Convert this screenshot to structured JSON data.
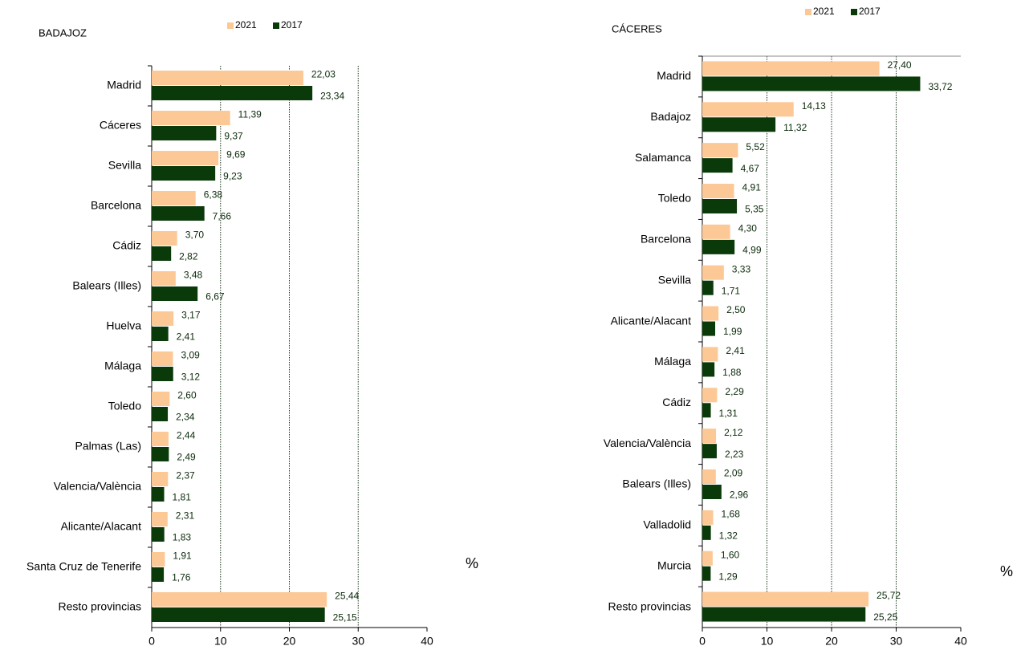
{
  "chart_data": [
    {
      "type": "bar",
      "orientation": "horizontal",
      "title": "BADAJOZ",
      "x_label": "%",
      "categories": [
        "Madrid",
        "Cáceres",
        "Sevilla",
        "Barcelona",
        "Cádiz",
        "Balears (Illes)",
        "Huelva",
        "Málaga",
        "Toledo",
        "Palmas (Las)",
        "Valencia/València",
        "Alicante/Alacant",
        "Santa Cruz de Tenerife",
        "Resto provincias"
      ],
      "series": [
        {
          "name": "2021",
          "color": "#fcc896",
          "values": [
            22.03,
            11.39,
            9.69,
            6.38,
            3.7,
            3.48,
            3.17,
            3.09,
            2.6,
            2.44,
            2.37,
            2.31,
            1.91,
            25.44
          ],
          "value_labels": [
            "22,03",
            "11,39",
            "9,69",
            "6,38",
            "3,70",
            "3,48",
            "3,17",
            "3,09",
            "2,60",
            "2,44",
            "2,37",
            "2,31",
            "1,91",
            "25,44"
          ]
        },
        {
          "name": "2017",
          "color": "#0a3a0a",
          "values": [
            23.34,
            9.37,
            9.23,
            7.66,
            2.82,
            6.67,
            2.41,
            3.12,
            2.34,
            2.49,
            1.81,
            1.83,
            1.76,
            25.15
          ],
          "value_labels": [
            "23,34",
            "9,37",
            "9,23",
            "7,66",
            "2,82",
            "6,67",
            "2,41",
            "3,12",
            "2,34",
            "2,49",
            "1,81",
            "1,83",
            "1,76",
            "25,15"
          ]
        }
      ],
      "xlim": [
        0,
        40
      ],
      "xticks": [
        0,
        10,
        20,
        30,
        40
      ],
      "grid": true,
      "legend": "top"
    },
    {
      "type": "bar",
      "orientation": "horizontal",
      "title": "CÁCERES",
      "x_label": "%",
      "categories": [
        "Madrid",
        "Badajoz",
        "Salamanca",
        "Toledo",
        "Barcelona",
        "Sevilla",
        "Alicante/Alacant",
        "Málaga",
        "Cádiz",
        "Valencia/València",
        "Balears (Illes)",
        "Valladolid",
        "Murcia",
        "Resto provincias"
      ],
      "series": [
        {
          "name": "2021",
          "color": "#fcc896",
          "values": [
            27.4,
            14.13,
            5.52,
            4.91,
            4.3,
            3.33,
            2.5,
            2.41,
            2.29,
            2.12,
            2.09,
            1.68,
            1.6,
            25.72
          ],
          "value_labels": [
            "27,40",
            "14,13",
            "5,52",
            "4,91",
            "4,30",
            "3,33",
            "2,50",
            "2,41",
            "2,29",
            "2,12",
            "2,09",
            "1,68",
            "1,60",
            "25,72"
          ]
        },
        {
          "name": "2017",
          "color": "#0a3a0a",
          "values": [
            33.72,
            11.32,
            4.67,
            5.35,
            4.99,
            1.71,
            1.99,
            1.88,
            1.31,
            2.23,
            2.96,
            1.32,
            1.29,
            25.25
          ],
          "value_labels": [
            "33,72",
            "11,32",
            "4,67",
            "5,35",
            "4,99",
            "1,71",
            "1,99",
            "1,88",
            "1,31",
            "2,23",
            "2,96",
            "1,32",
            "1,29",
            "25,25"
          ]
        }
      ],
      "xlim": [
        0,
        40
      ],
      "xticks": [
        0,
        10,
        20,
        30,
        40
      ],
      "grid": true,
      "legend": "top"
    }
  ]
}
